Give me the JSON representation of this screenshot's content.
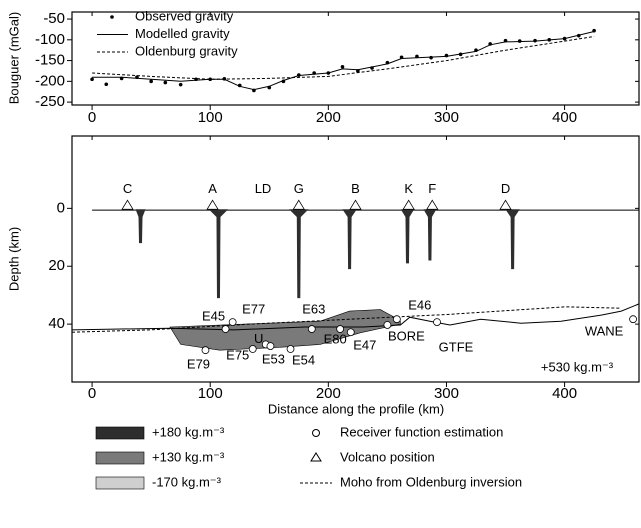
{
  "chart_data": [
    {
      "type": "line",
      "y_label": "Bouguer (mGal)",
      "xlim": [
        -17,
        463
      ],
      "xticks": [
        0,
        100,
        200,
        300,
        400
      ],
      "ylim": [
        -257,
        -33
      ],
      "yticks": [
        -250,
        -200,
        -150,
        -100,
        -50
      ],
      "series": [
        {
          "name": "Observed gravity",
          "style": "points",
          "color": "#000",
          "x": [
            0,
            12,
            25,
            38,
            50,
            62,
            75,
            88,
            100,
            112,
            125,
            137,
            150,
            162,
            175,
            188,
            200,
            212,
            225,
            237,
            250,
            262,
            275,
            287,
            300,
            312,
            325,
            337,
            350,
            362,
            375,
            387,
            400,
            412,
            425
          ],
          "values": [
            -195,
            -207,
            -193,
            -190,
            -200,
            -203,
            -208,
            -195,
            -195,
            -194,
            -210,
            -222,
            -215,
            -200,
            -185,
            -180,
            -180,
            -165,
            -175,
            -168,
            -155,
            -142,
            -140,
            -143,
            -138,
            -135,
            -125,
            -110,
            -102,
            -103,
            -102,
            -100,
            -97,
            -90,
            -78
          ]
        },
        {
          "name": "Modelled gravity",
          "style": "solid",
          "color": "#000",
          "x": [
            0,
            25,
            50,
            75,
            100,
            112,
            125,
            137,
            150,
            162,
            175,
            200,
            212,
            225,
            250,
            262,
            275,
            300,
            325,
            337,
            350,
            375,
            400,
            425
          ],
          "values": [
            -190,
            -190,
            -195,
            -200,
            -195,
            -195,
            -212,
            -220,
            -212,
            -198,
            -186,
            -180,
            -170,
            -172,
            -158,
            -145,
            -143,
            -140,
            -128,
            -112,
            -105,
            -103,
            -97,
            -80
          ]
        },
        {
          "name": "Oldenburg gravity",
          "style": "dashed",
          "color": "#000",
          "x": [
            0,
            50,
            100,
            150,
            200,
            250,
            300,
            350,
            400,
            425
          ],
          "values": [
            -180,
            -188,
            -195,
            -193,
            -188,
            -170,
            -150,
            -125,
            -103,
            -92
          ]
        }
      ]
    },
    {
      "type": "section",
      "y_label": "Depth (km)",
      "x_label": "Distance along the profile (km)",
      "xlim": [
        -17,
        463
      ],
      "xticks": [
        0,
        100,
        200,
        300,
        400
      ],
      "ylim": [
        -25,
        60
      ],
      "yticks": [
        0,
        20,
        40
      ],
      "annotation": "+530 kg.m⁻³",
      "volcanoes": {
        "names": [
          "C",
          "A",
          "G",
          "B",
          "K",
          "F",
          "D"
        ],
        "x": [
          30,
          102,
          175,
          223,
          268,
          288,
          350
        ]
      },
      "LD_label": "LD",
      "dikes": {
        "x": [
          41,
          107,
          175,
          218,
          267,
          286,
          356
        ],
        "depth": [
          12,
          31,
          31,
          21,
          19,
          18,
          21
        ]
      },
      "underplating": {
        "x": [
          66,
          193,
          218,
          244,
          256,
          261,
          261,
          227,
          193,
          159,
          108,
          75
        ],
        "depth": [
          41,
          39,
          35.5,
          35,
          37.6,
          39,
          40,
          43,
          47,
          48,
          49,
          47
        ]
      },
      "moho": {
        "x": [
          -17,
          66,
          120,
          180,
          230,
          261,
          269,
          286,
          303,
          329,
          363,
          397,
          431,
          448,
          463
        ],
        "depth": [
          42,
          41.4,
          42,
          41,
          41,
          40.3,
          37.6,
          39,
          40.3,
          38.3,
          39.7,
          39,
          36.9,
          35.5,
          33
        ]
      },
      "oldenburg_moho": {
        "x": [
          -17,
          49,
          134,
          219,
          303,
          401,
          447
        ],
        "depth": [
          42.8,
          42,
          40,
          38.3,
          36.6,
          34,
          34.5
        ]
      },
      "stations": {
        "names": [
          "E79",
          "E45",
          "E77",
          "E75",
          "U",
          "E53",
          "E54",
          "E63",
          "E80",
          "E47",
          "BORE",
          "E46",
          "GTFE",
          "WANE"
        ],
        "x": [
          96,
          113,
          119,
          136,
          147,
          151,
          168,
          186,
          210,
          219,
          250,
          258,
          292,
          458
        ],
        "depth": [
          49,
          41.7,
          39.3,
          48.6,
          47,
          47.6,
          48.6,
          41.7,
          41.7,
          42.8,
          40.3,
          38.3,
          39.3,
          38.3
        ]
      },
      "legend": [
        {
          "label": "+180 kg.m⁻³",
          "color": "#2e2e2e"
        },
        {
          "label": "+130 kg.m⁻³",
          "color": "#7a7a7a"
        },
        {
          "label": "-170 kg.m⁻³",
          "color": "#cfcfcf"
        }
      ],
      "symbols": [
        "Receiver function estimation",
        "Volcano position",
        "Moho from Oldenburg inversion"
      ]
    }
  ]
}
